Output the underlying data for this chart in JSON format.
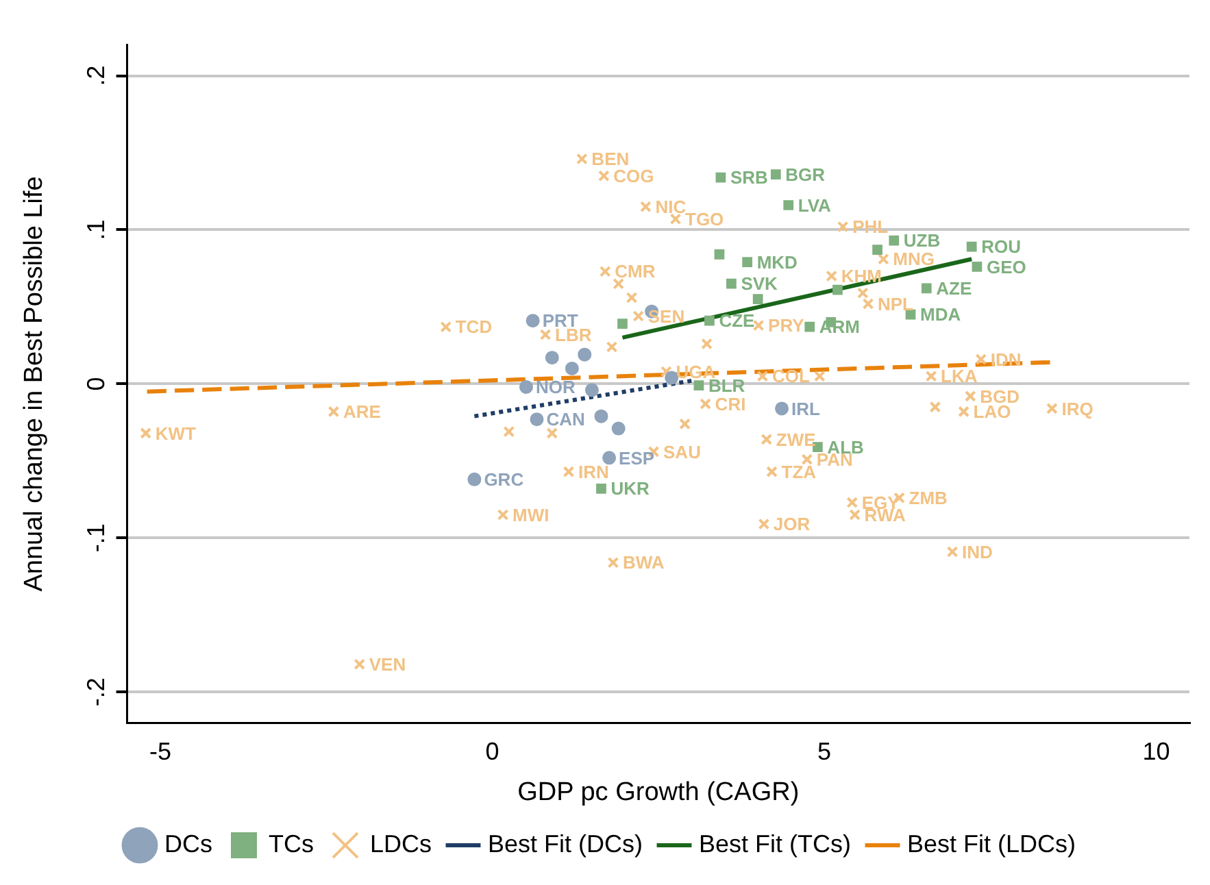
{
  "chart_data": {
    "type": "scatter",
    "xlabel": "GDP pc Growth (CAGR)",
    "ylabel": "Annual change in Best Possible Life",
    "xlim": [
      -5.5,
      10.5
    ],
    "ylim": [
      -0.22,
      0.22
    ],
    "xticks": [
      -5,
      0,
      5,
      10
    ],
    "yticks": [
      {
        "value": -0.2,
        "label": "-.2"
      },
      {
        "value": -0.1,
        "label": "-.1"
      },
      0,
      {
        "value": 0.1,
        "label": ".1"
      },
      {
        "value": 0.2,
        "label": ".2"
      }
    ],
    "grid": "y",
    "legend": "bottom",
    "series": [
      {
        "name": "DCs",
        "marker": "circle",
        "color": "#8fa3bb",
        "x": [
          0.61,
          -0.27,
          0.67,
          1.76,
          4.36,
          0.51,
          1.39,
          1.9,
          1.64,
          1.2,
          0.9,
          2.4,
          2.7,
          1.5
        ],
        "values": [
          0.041,
          -0.062,
          -0.023,
          -0.048,
          -0.016,
          -0.002,
          0.019,
          -0.029,
          -0.021,
          0.01,
          0.017,
          0.047,
          0.004,
          -0.004
        ]
      },
      {
        "name": "TCs",
        "marker": "square",
        "color": "#7fb07f",
        "x": [
          3.44,
          4.27,
          4.46,
          6.05,
          7.22,
          7.3,
          6.54,
          6.3,
          3.42,
          3.84,
          3.6,
          3.27,
          4.78,
          5.1,
          4.9,
          1.64,
          3.11,
          1.96,
          5.8,
          5.2,
          4.0
        ],
        "values": [
          0.134,
          0.136,
          0.116,
          0.093,
          0.089,
          0.076,
          0.062,
          0.045,
          0.084,
          0.079,
          0.065,
          0.041,
          0.037,
          0.04,
          -0.041,
          -0.068,
          -0.001,
          0.039,
          0.087,
          0.061,
          0.055
        ]
      },
      {
        "name": "LDCs",
        "marker": "cross",
        "color": "#f2c284",
        "x": [
          1.35,
          1.68,
          2.31,
          2.76,
          5.28,
          5.89,
          5.11,
          5.58,
          5.66,
          1.7,
          -0.7,
          0.8,
          2.2,
          4.01,
          7.36,
          6.61,
          7.2,
          6.67,
          7.1,
          8.43,
          -2.39,
          -5.22,
          -2.0,
          0.25,
          3.21,
          2.43,
          4.13,
          1.15,
          4.21,
          4.74,
          0.16,
          4.09,
          1.82,
          5.42,
          6.13,
          5.46,
          6.93,
          4.07,
          4.93,
          2.62,
          1.9,
          3.23,
          2.1,
          1.8,
          0.9,
          2.9
        ],
        "values": [
          0.146,
          0.135,
          0.115,
          0.107,
          0.102,
          0.081,
          0.07,
          0.059,
          0.052,
          0.073,
          0.037,
          0.032,
          0.044,
          0.038,
          0.016,
          0.005,
          -0.008,
          -0.015,
          -0.018,
          -0.016,
          -0.018,
          -0.032,
          -0.182,
          -0.031,
          -0.013,
          -0.044,
          -0.036,
          -0.057,
          -0.057,
          -0.049,
          -0.085,
          -0.091,
          -0.116,
          -0.077,
          -0.074,
          -0.085,
          -0.109,
          0.005,
          0.005,
          0.008,
          0.065,
          0.026,
          0.056,
          0.024,
          -0.032,
          -0.026
        ]
      },
      {
        "name": "Best Fit (DCs)",
        "type": "line",
        "line_style": "dotted",
        "marker": "none",
        "color": "#1f3d66",
        "x": [
          -0.27,
          3.0
        ],
        "values": [
          -0.021,
          0.002
        ]
      },
      {
        "name": "Best Fit (TCs)",
        "type": "line",
        "line_style": "solid",
        "marker": "none",
        "color": "#1a661a",
        "x": [
          1.96,
          7.22
        ],
        "values": [
          0.03,
          0.081
        ]
      },
      {
        "name": "Best Fit (LDCs)",
        "type": "line",
        "line_style": "dashed",
        "marker": "none",
        "color": "#e8820c",
        "x": [
          -5.2,
          8.4
        ],
        "values": [
          -0.005,
          0.014
        ]
      }
    ],
    "annotations": [
      {
        "text": "PRT",
        "x": 0.61,
        "y": 0.041
      },
      {
        "text": "GRC",
        "x": -0.27,
        "y": -0.062
      },
      {
        "text": "CAN",
        "x": 0.67,
        "y": -0.023
      },
      {
        "text": "ESP",
        "x": 1.76,
        "y": -0.048
      },
      {
        "text": "IRL",
        "x": 4.36,
        "y": -0.016
      },
      {
        "text": "NOR",
        "x": 0.51,
        "y": -0.002
      },
      {
        "text": "SRB",
        "x": 3.44,
        "y": 0.134
      },
      {
        "text": "BGR",
        "x": 4.27,
        "y": 0.136
      },
      {
        "text": "LVA",
        "x": 4.46,
        "y": 0.116
      },
      {
        "text": "UZB",
        "x": 6.05,
        "y": 0.093
      },
      {
        "text": "ROU",
        "x": 7.22,
        "y": 0.089
      },
      {
        "text": "GEO",
        "x": 7.3,
        "y": 0.076
      },
      {
        "text": "AZE",
        "x": 6.54,
        "y": 0.062
      },
      {
        "text": "MDA",
        "x": 6.3,
        "y": 0.045
      },
      {
        "text": "MKD",
        "x": 3.84,
        "y": 0.079
      },
      {
        "text": "SVK",
        "x": 3.6,
        "y": 0.065
      },
      {
        "text": "CZE",
        "x": 3.27,
        "y": 0.041
      },
      {
        "text": "ARM",
        "x": 4.78,
        "y": 0.037
      },
      {
        "text": "ALB",
        "x": 4.9,
        "y": -0.041
      },
      {
        "text": "UKR",
        "x": 1.64,
        "y": -0.068
      },
      {
        "text": "BLR",
        "x": 3.11,
        "y": -0.001
      },
      {
        "text": "BEN",
        "x": 1.35,
        "y": 0.146
      },
      {
        "text": "COG",
        "x": 1.68,
        "y": 0.135
      },
      {
        "text": "NIC",
        "x": 2.31,
        "y": 0.115
      },
      {
        "text": "TGO",
        "x": 2.76,
        "y": 0.107
      },
      {
        "text": "PHL",
        "x": 5.28,
        "y": 0.102
      },
      {
        "text": "MNG",
        "x": 5.89,
        "y": 0.081
      },
      {
        "text": "KHM",
        "x": 5.11,
        "y": 0.07
      },
      {
        "text": "NPL",
        "x": 5.66,
        "y": 0.052
      },
      {
        "text": "CMR",
        "x": 1.7,
        "y": 0.073
      },
      {
        "text": "TCD",
        "x": -0.7,
        "y": 0.037
      },
      {
        "text": "LBR",
        "x": 0.8,
        "y": 0.032
      },
      {
        "text": "SEN",
        "x": 2.2,
        "y": 0.044
      },
      {
        "text": "PRY",
        "x": 4.01,
        "y": 0.038
      },
      {
        "text": "IDN",
        "x": 7.36,
        "y": 0.016
      },
      {
        "text": "LKA",
        "x": 6.61,
        "y": 0.005
      },
      {
        "text": "BGD",
        "x": 7.2,
        "y": -0.008
      },
      {
        "text": "LAO",
        "x": 7.1,
        "y": -0.018
      },
      {
        "text": "IRQ",
        "x": 8.43,
        "y": -0.016
      },
      {
        "text": "ARE",
        "x": -2.39,
        "y": -0.018
      },
      {
        "text": "KWT",
        "x": -5.22,
        "y": -0.032
      },
      {
        "text": "VEN",
        "x": -2.0,
        "y": -0.182
      },
      {
        "text": "CRI",
        "x": 3.21,
        "y": -0.013
      },
      {
        "text": "SAU",
        "x": 2.43,
        "y": -0.044
      },
      {
        "text": "ZWE",
        "x": 4.13,
        "y": -0.036
      },
      {
        "text": "IRN",
        "x": 1.15,
        "y": -0.057
      },
      {
        "text": "TZA",
        "x": 4.21,
        "y": -0.057
      },
      {
        "text": "PAN",
        "x": 4.74,
        "y": -0.049
      },
      {
        "text": "MWI",
        "x": 0.16,
        "y": -0.085
      },
      {
        "text": "JOR",
        "x": 4.09,
        "y": -0.091
      },
      {
        "text": "BWA",
        "x": 1.82,
        "y": -0.116
      },
      {
        "text": "EGY",
        "x": 5.42,
        "y": -0.077
      },
      {
        "text": "ZMB",
        "x": 6.13,
        "y": -0.074
      },
      {
        "text": "RWA",
        "x": 5.46,
        "y": -0.085
      },
      {
        "text": "IND",
        "x": 6.93,
        "y": -0.109
      },
      {
        "text": "COL",
        "x": 4.07,
        "y": 0.005
      },
      {
        "text": "UGA",
        "x": 2.62,
        "y": 0.008
      }
    ]
  }
}
